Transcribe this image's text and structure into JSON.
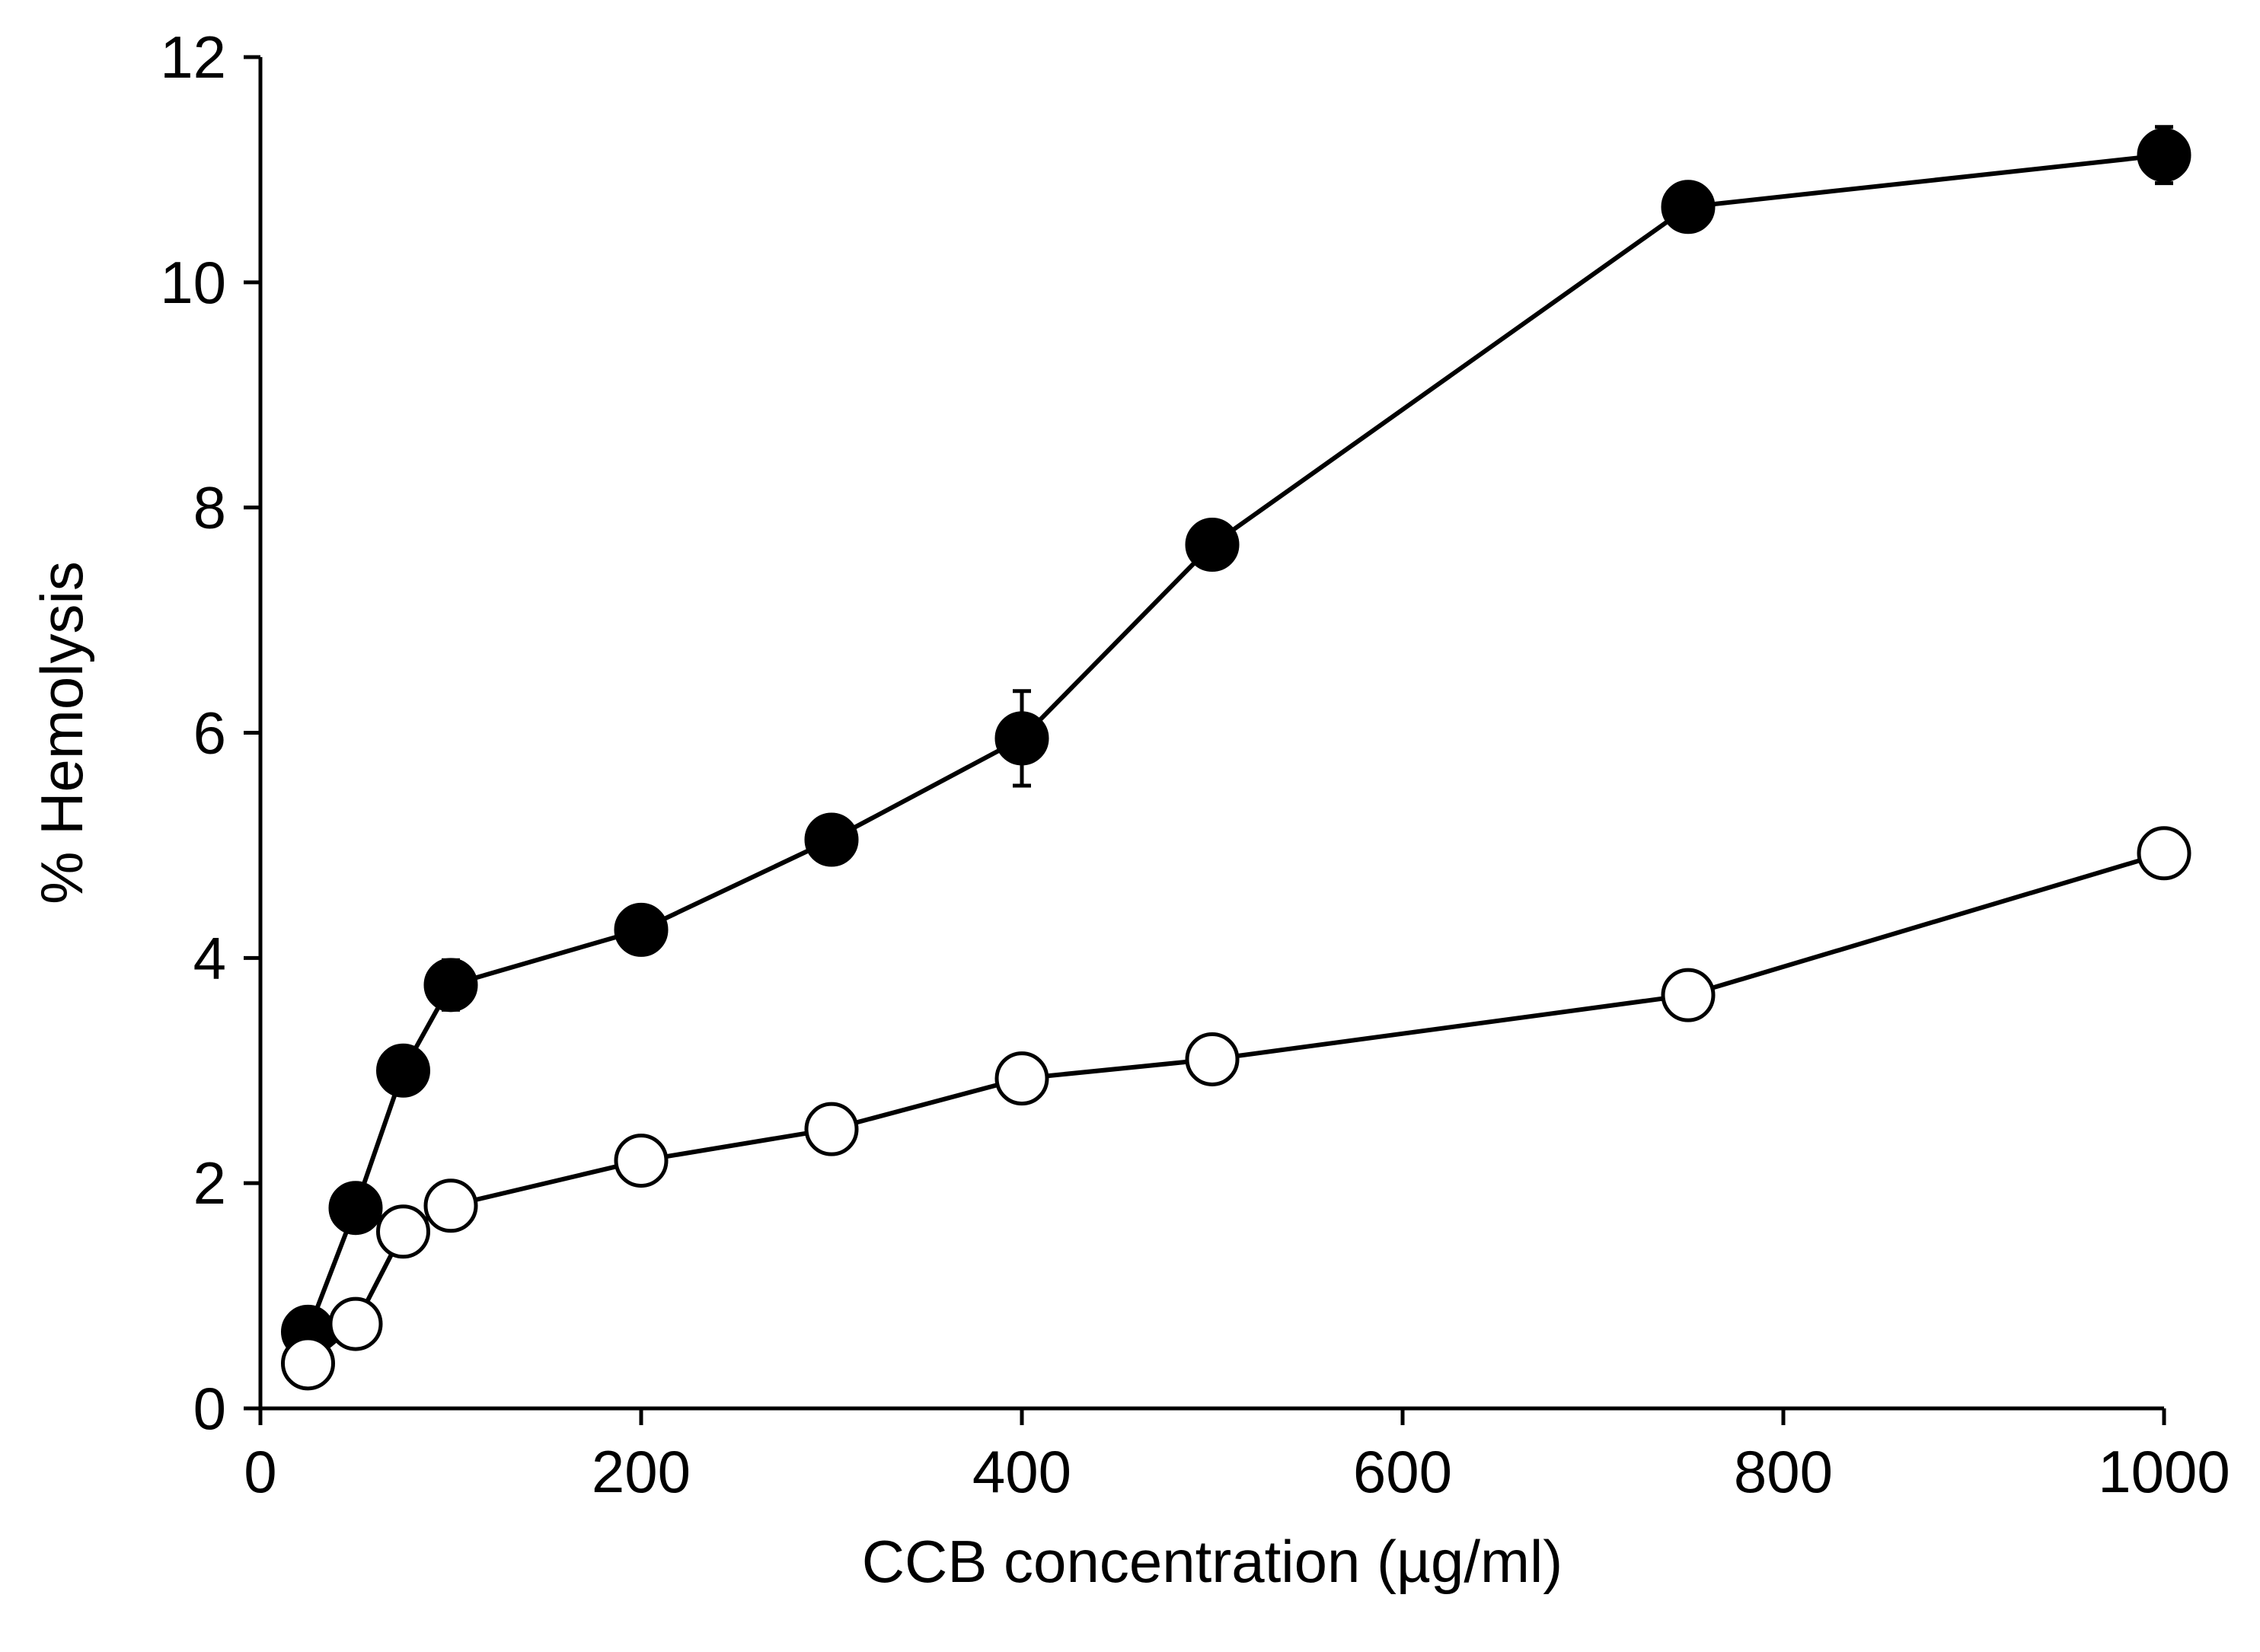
{
  "chart_data": {
    "type": "line",
    "title": "",
    "xlabel": "CCB concentration (µg/ml)",
    "ylabel": "% Hemolysis",
    "xlim": [
      0,
      1000
    ],
    "ylim": [
      0,
      12
    ],
    "xticks": [
      0,
      200,
      400,
      600,
      800,
      1000
    ],
    "yticks": [
      0,
      2,
      4,
      6,
      8,
      10,
      12
    ],
    "xtick_labels": [
      "0",
      "200",
      "400",
      "600",
      "800",
      "1000"
    ],
    "ytick_labels": [
      "0",
      "2",
      "4",
      "6",
      "8",
      "10",
      "12"
    ],
    "grid": false,
    "legend": null,
    "series": [
      {
        "name": "filled circles",
        "marker": "filled-circle",
        "color": "#000000",
        "x": [
          25,
          50,
          75,
          100,
          200,
          300,
          400,
          500,
          750,
          1000
        ],
        "y": [
          0.68,
          1.78,
          3.0,
          3.76,
          4.25,
          5.05,
          5.95,
          7.67,
          10.67,
          11.13
        ],
        "error": [
          0.1,
          0.2,
          0.1,
          0.22,
          0.08,
          0.1,
          0.42,
          0.08,
          0.08,
          0.25
        ]
      },
      {
        "name": "open circles",
        "marker": "open-circle",
        "color": "#000000",
        "x": [
          25,
          50,
          75,
          100,
          200,
          300,
          400,
          500,
          750,
          1000
        ],
        "y": [
          0.4,
          0.75,
          1.57,
          1.8,
          2.2,
          2.48,
          2.93,
          3.1,
          3.67,
          4.93
        ],
        "error": [
          0.05,
          0.05,
          0.08,
          0.08,
          0.06,
          0.06,
          0.06,
          0.06,
          0.08,
          0.2
        ]
      }
    ]
  }
}
